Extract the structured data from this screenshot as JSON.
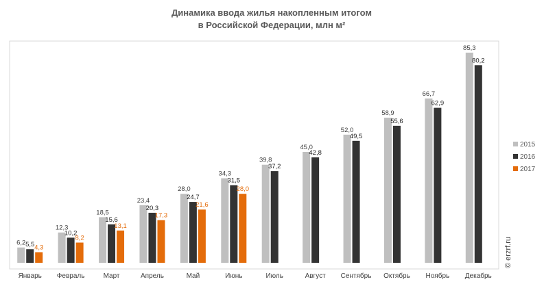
{
  "chart_data": {
    "type": "bar",
    "title_lines": [
      "Динамика ввода жилья накопленным итогом",
      "в Российской Федерации, млн м²"
    ],
    "xlabel": "",
    "ylabel": "",
    "categories": [
      "Январь",
      "Февраль",
      "Март",
      "Апрель",
      "Май",
      "Июнь",
      "Июль",
      "Август",
      "Сентябрь",
      "Октябрь",
      "Ноябрь",
      "Декабрь"
    ],
    "series": [
      {
        "name": "2015",
        "color": "#bfbfbf",
        "label_color": "#404040",
        "values": [
          6.2,
          12.3,
          18.5,
          23.4,
          28.0,
          34.3,
          39.8,
          45.0,
          52.0,
          58.9,
          66.7,
          85.3
        ],
        "labels": [
          "6,2",
          "12,3",
          "18,5",
          "23,4",
          "28,0",
          "34,3",
          "39,8",
          "45,0",
          "52,0",
          "58,9",
          "66,7",
          "85,3"
        ]
      },
      {
        "name": "2016",
        "color": "#333333",
        "label_color": "#222222",
        "values": [
          5.5,
          10.2,
          15.6,
          20.3,
          24.7,
          31.5,
          37.2,
          42.8,
          49.5,
          55.6,
          62.9,
          80.2
        ],
        "labels": [
          "5,5",
          "10,2",
          "15,6",
          "20,3",
          "24,7",
          "31,5",
          "37,2",
          "42,8",
          "49,5",
          "55,6",
          "62,9",
          "80,2"
        ]
      },
      {
        "name": "2017",
        "color": "#e46c0a",
        "label_color": "#e46c0a",
        "values": [
          4.3,
          8.2,
          13.1,
          17.3,
          21.6,
          28.0,
          null,
          null,
          null,
          null,
          null,
          null
        ],
        "labels": [
          "4,3",
          "8,2",
          "13,1",
          "17,3",
          "21,6",
          "28,0",
          null,
          null,
          null,
          null,
          null,
          null
        ]
      }
    ],
    "ylim": [
      0,
      90
    ],
    "grid": false,
    "legend_position": "right"
  },
  "watermark": "© erzrf.ru"
}
